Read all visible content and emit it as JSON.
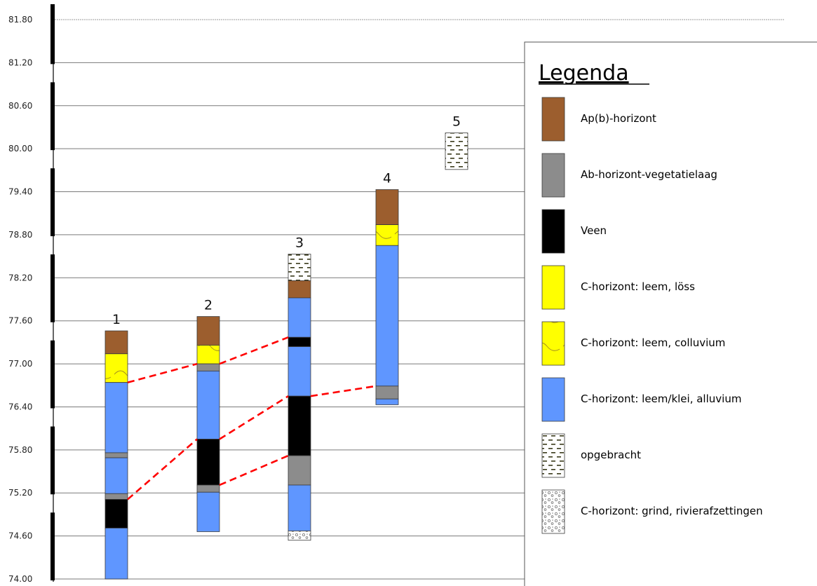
{
  "y_axis": {
    "ticks": [
      "81.80",
      "81.20",
      "80.60",
      "80.00",
      "79.40",
      "78.80",
      "78.20",
      "77.60",
      "77.00",
      "76.40",
      "75.80",
      "75.20",
      "74.60",
      "74.00"
    ]
  },
  "colors": {
    "ap": "#9c5e2e",
    "ab": "#8c8c8c",
    "veen": "#000000",
    "loss": "#ffff00",
    "colluvium": "#ffff00",
    "alluvium": "#5f96ff",
    "correlation_line": "#ff0000"
  },
  "columns": [
    {
      "label": "1",
      "layers": [
        {
          "type": "ap",
          "top": 77.46,
          "bottom": 77.14
        },
        {
          "type": "colluvium",
          "top": 77.14,
          "bottom": 76.74
        },
        {
          "type": "alluvium",
          "top": 76.74,
          "bottom": 75.76
        },
        {
          "type": "ab",
          "top": 75.76,
          "bottom": 75.69
        },
        {
          "type": "alluvium",
          "top": 75.69,
          "bottom": 75.19
        },
        {
          "type": "ab",
          "top": 75.19,
          "bottom": 75.11
        },
        {
          "type": "veen",
          "top": 75.11,
          "bottom": 74.71
        },
        {
          "type": "alluvium",
          "top": 74.71,
          "bottom": 74.0
        }
      ]
    },
    {
      "label": "2",
      "layers": [
        {
          "type": "ap",
          "top": 77.66,
          "bottom": 77.26
        },
        {
          "type": "colluvium",
          "top": 77.26,
          "bottom": 77.0
        },
        {
          "type": "ab",
          "top": 77.0,
          "bottom": 76.9
        },
        {
          "type": "alluvium",
          "top": 76.9,
          "bottom": 75.95
        },
        {
          "type": "veen",
          "top": 75.95,
          "bottom": 75.31
        },
        {
          "type": "ab",
          "top": 75.31,
          "bottom": 75.21
        },
        {
          "type": "alluvium",
          "top": 75.21,
          "bottom": 74.66
        }
      ]
    },
    {
      "label": "3",
      "layers": [
        {
          "type": "opgebracht",
          "top": 78.53,
          "bottom": 78.16
        },
        {
          "type": "ap",
          "top": 78.16,
          "bottom": 77.92
        },
        {
          "type": "alluvium",
          "top": 77.92,
          "bottom": 77.37
        },
        {
          "type": "veen",
          "top": 77.37,
          "bottom": 77.24
        },
        {
          "type": "alluvium",
          "top": 77.24,
          "bottom": 76.55
        },
        {
          "type": "veen",
          "top": 76.55,
          "bottom": 75.72
        },
        {
          "type": "ab",
          "top": 75.72,
          "bottom": 75.31
        },
        {
          "type": "alluvium",
          "top": 75.31,
          "bottom": 74.67
        },
        {
          "type": "grind",
          "top": 74.67,
          "bottom": 74.54
        }
      ]
    },
    {
      "label": "4",
      "layers": [
        {
          "type": "ap",
          "top": 79.43,
          "bottom": 78.94
        },
        {
          "type": "colluvium",
          "top": 78.94,
          "bottom": 78.65
        },
        {
          "type": "alluvium",
          "top": 78.65,
          "bottom": 76.69
        },
        {
          "type": "ab",
          "top": 76.69,
          "bottom": 76.51
        },
        {
          "type": "alluvium",
          "top": 76.51,
          "bottom": 76.43
        }
      ]
    },
    {
      "label": "5",
      "layers": [
        {
          "type": "opgebracht",
          "top": 80.22,
          "bottom": 79.71
        }
      ]
    }
  ],
  "correlation_lines": [
    [
      [
        1,
        76.74
      ],
      [
        2,
        77.0
      ],
      [
        3,
        77.37
      ]
    ],
    [
      [
        1,
        75.11
      ],
      [
        2,
        75.95
      ],
      [
        3,
        76.55
      ],
      [
        4,
        76.69
      ]
    ],
    [
      [
        2,
        75.31
      ],
      [
        3,
        75.72
      ]
    ]
  ],
  "legend": {
    "title": "Legenda",
    "items": [
      {
        "type": "ap",
        "label": "Ap(b)-horizont"
      },
      {
        "type": "ab",
        "label": "Ab-horizont-vegetatielaag"
      },
      {
        "type": "veen",
        "label": "Veen"
      },
      {
        "type": "loss",
        "label": "C-horizont: leem, löss"
      },
      {
        "type": "colluvium",
        "label": "C-horizont: leem, colluvium"
      },
      {
        "type": "alluvium",
        "label": "C-horizont: leem/klei, alluvium"
      },
      {
        "type": "opgebracht",
        "label": "opgebracht"
      },
      {
        "type": "grind",
        "label": "C-horizont: grind, rivierafzettingen"
      }
    ]
  }
}
